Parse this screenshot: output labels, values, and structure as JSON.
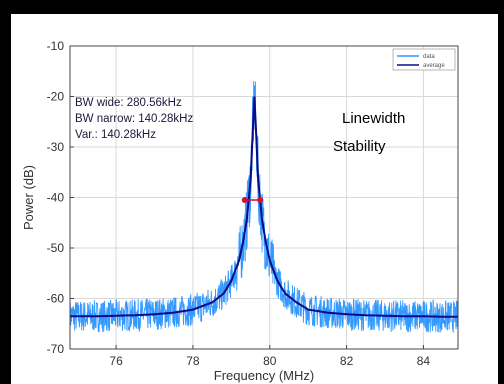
{
  "chart_data": {
    "type": "line",
    "xlabel": "Frequency (MHz)",
    "ylabel": "Power (dB)",
    "xlim": [
      74.8,
      84.9
    ],
    "ylim": [
      -70,
      -10
    ],
    "x_ticks": [
      76,
      78,
      80,
      82,
      84
    ],
    "x_tick_labels": [
      "76",
      "78",
      "80",
      "82",
      "84"
    ],
    "y_ticks": [
      -10,
      -20,
      -30,
      -40,
      -50,
      -60,
      -70
    ],
    "y_tick_labels": [
      "-10",
      "-20",
      "-30",
      "-40",
      "-50",
      "-60",
      "-70"
    ],
    "grid": true,
    "legend_position": "top-right",
    "series": [
      {
        "name": "data",
        "color": "#3399ff",
        "noise_floor": -62,
        "peak_x": 79.6,
        "peak_y": -19
      },
      {
        "name": "average",
        "color": "#0a0a8a",
        "x": [
          74.8,
          75.5,
          76.0,
          76.5,
          77.0,
          77.5,
          78.0,
          78.5,
          78.8,
          79.0,
          79.2,
          79.3,
          79.4,
          79.5,
          79.55,
          79.6,
          79.65,
          79.7,
          79.8,
          79.9,
          80.0,
          80.2,
          80.4,
          80.7,
          81.0,
          81.5,
          82.0,
          82.5,
          83.0,
          83.5,
          84.0,
          84.5,
          84.9
        ],
        "y": [
          -63.5,
          -63.5,
          -63.4,
          -63.3,
          -63.1,
          -62.8,
          -62.2,
          -60.8,
          -59.0,
          -56.5,
          -52.5,
          -49.0,
          -44.5,
          -36.5,
          -28.0,
          -20.0,
          -28.0,
          -36.5,
          -44.5,
          -49.0,
          -52.5,
          -56.5,
          -59.0,
          -60.8,
          -62.2,
          -62.8,
          -63.1,
          -63.3,
          -63.4,
          -63.5,
          -63.5,
          -63.6,
          -63.6
        ]
      }
    ],
    "markers": {
      "color": "#cc1133",
      "x": [
        79.35,
        79.75
      ],
      "y": [
        -40.5,
        -40.5
      ]
    },
    "annotations": [
      "BW wide: 280.56kHz",
      "BW narrow: 140.28kHz",
      "Var.: 140.28kHz"
    ],
    "side_text": [
      "Linewidth",
      "Stability"
    ]
  }
}
